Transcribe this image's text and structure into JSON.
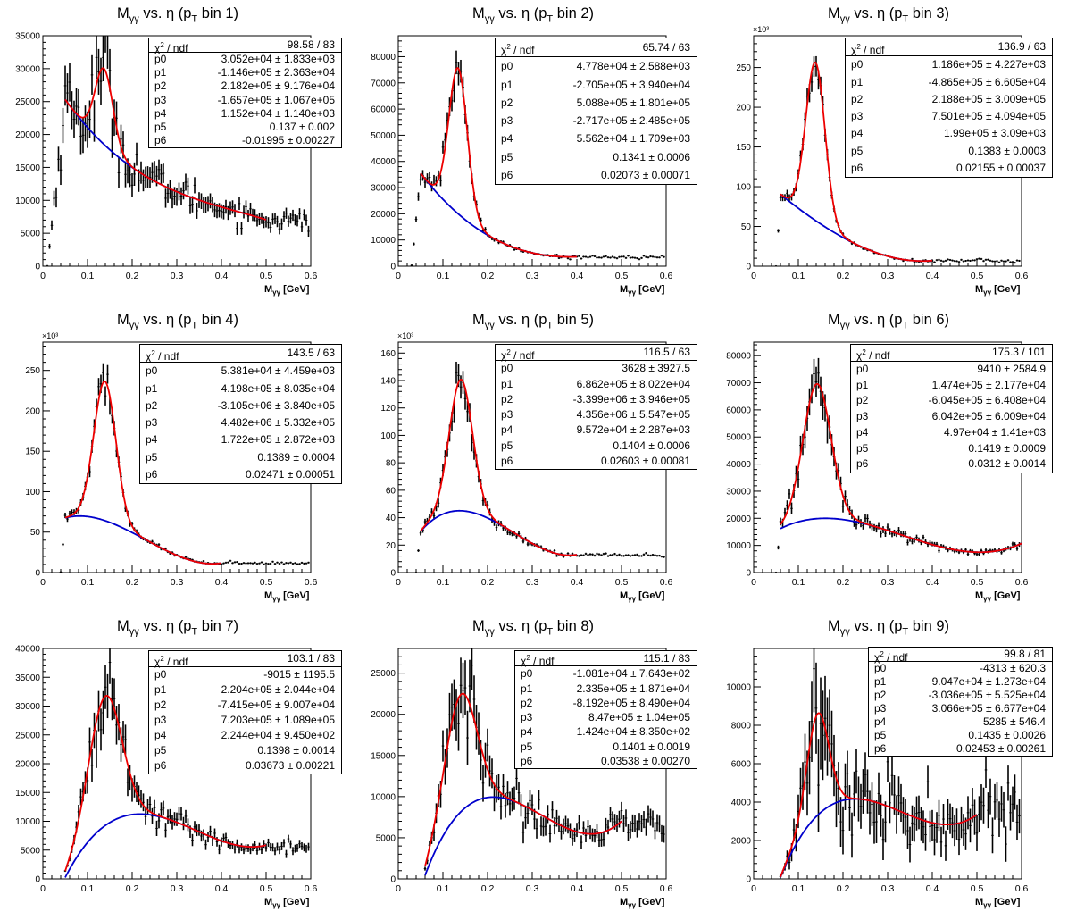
{
  "chart_data": [
    {
      "type": "scatter",
      "title_main": "M",
      "title_sub": "γγ",
      "title_rest": " vs. η (p",
      "title_sub2": "T",
      "title_end": " bin 1)",
      "xlabel_main": "M",
      "xlabel_sub": "γγ",
      "xlabel_rest": " [GeV]",
      "xlim": [
        0,
        0.6
      ],
      "ylim": [
        0,
        35000
      ],
      "yticks": [
        0,
        5000,
        10000,
        15000,
        20000,
        25000,
        30000,
        35000
      ],
      "ytick_labels": [
        "0",
        "5000",
        "10000",
        "15000",
        "20000",
        "25000",
        "30000",
        "35000"
      ],
      "y_exponent": "",
      "fit_range": [
        0.05,
        0.5
      ],
      "params": [
        30520,
        -114600,
        218200,
        -165700,
        11520,
        0.137,
        -0.01995
      ],
      "stats": {
        "chi2_label": "χ",
        "chi2_sup": "2",
        "ndf_label": " / ndf",
        "chi2_value": "98.58 / 83",
        "rows": [
          [
            "p0",
            "3.052e+04 ± 1.833e+03"
          ],
          [
            "p1",
            "-1.146e+05 ± 2.363e+04"
          ],
          [
            "p2",
            "2.182e+05 ± 9.176e+04"
          ],
          [
            "p3",
            "-1.657e+05 ± 1.067e+05"
          ],
          [
            "p4",
            "1.152e+04 ± 1.140e+03"
          ],
          [
            "p5",
            "0.137 ± 0.002"
          ],
          [
            "p6",
            "-0.01995 ± 0.00227"
          ]
        ]
      },
      "data_onset": 0.01,
      "noise": 0.12
    },
    {
      "type": "scatter",
      "title_main": "M",
      "title_sub": "γγ",
      "title_rest": " vs. η (p",
      "title_sub2": "T",
      "title_end": " bin 2)",
      "xlabel_main": "M",
      "xlabel_sub": "γγ",
      "xlabel_rest": " [GeV]",
      "xlim": [
        0,
        0.6
      ],
      "ylim": [
        0,
        88000
      ],
      "yticks": [
        0,
        10000,
        20000,
        30000,
        40000,
        50000,
        60000,
        70000,
        80000
      ],
      "ytick_labels": [
        "0",
        "10000",
        "20000",
        "30000",
        "40000",
        "50000",
        "60000",
        "70000",
        "80000"
      ],
      "y_exponent": "",
      "fit_range": [
        0.05,
        0.4
      ],
      "params": [
        47780,
        -270500,
        508800,
        -271700,
        55620,
        0.1341,
        0.02073
      ],
      "stats": {
        "chi2_label": "χ",
        "chi2_sup": "2",
        "ndf_label": " / ndf",
        "chi2_value": "65.74 / 63",
        "rows": [
          [
            "p0",
            "4.778e+04 ± 2.588e+03"
          ],
          [
            "p1",
            "-2.705e+05 ± 3.940e+04"
          ],
          [
            "p2",
            "5.088e+05 ± 1.801e+05"
          ],
          [
            "p3",
            "-2.717e+05 ± 2.485e+05"
          ],
          [
            "p4",
            "5.562e+04 ± 1.709e+03"
          ],
          [
            "p5",
            "0.1341 ± 0.0006"
          ],
          [
            "p6",
            "0.02073 ± 0.00071"
          ]
        ]
      },
      "data_onset": 0.03,
      "noise": 0.06
    },
    {
      "type": "scatter",
      "title_main": "M",
      "title_sub": "γγ",
      "title_rest": " vs. η (p",
      "title_sub2": "T",
      "title_end": " bin 3)",
      "xlabel_main": "M",
      "xlabel_sub": "γγ",
      "xlabel_rest": " [GeV]",
      "xlim": [
        0,
        0.6
      ],
      "ylim": [
        0,
        290
      ],
      "yticks": [
        0,
        50,
        100,
        150,
        200,
        250
      ],
      "ytick_labels": [
        "0",
        "50",
        "100",
        "150",
        "200",
        "250"
      ],
      "y_exponent": "×10³",
      "fit_range": [
        0.06,
        0.4
      ],
      "params": [
        118.6,
        -486.5,
        218.8,
        750.1,
        199,
        0.1383,
        0.02155
      ],
      "stats": {
        "chi2_label": "χ",
        "chi2_sup": "2",
        "ndf_label": " / ndf",
        "chi2_value": "136.9 / 63",
        "rows": [
          [
            "p0",
            "1.186e+05 ± 4.227e+03"
          ],
          [
            "p1",
            "-4.865e+05 ± 6.605e+04"
          ],
          [
            "p2",
            "2.188e+05 ± 3.009e+05"
          ],
          [
            "p3",
            "7.501e+05 ± 4.094e+05"
          ],
          [
            "p4",
            "1.99e+05 ± 3.09e+03"
          ],
          [
            "p5",
            "0.1383 ± 0.0003"
          ],
          [
            "p6",
            "0.02155 ± 0.00037"
          ]
        ]
      },
      "data_onset": 0.05,
      "noise": 0.05
    },
    {
      "type": "scatter",
      "title_main": "M",
      "title_sub": "γγ",
      "title_rest": " vs. η (p",
      "title_sub2": "T",
      "title_end": " bin 4)",
      "xlabel_main": "M",
      "xlabel_sub": "γγ",
      "xlabel_rest": " [GeV]",
      "xlim": [
        0,
        0.6
      ],
      "ylim": [
        0,
        285
      ],
      "yticks": [
        0,
        50,
        100,
        150,
        200,
        250
      ],
      "ytick_labels": [
        "0",
        "50",
        "100",
        "150",
        "200",
        "250"
      ],
      "y_exponent": "×10³",
      "fit_range": [
        0.05,
        0.4
      ],
      "params": [
        53.81,
        419.8,
        -3105,
        4482,
        172.2,
        0.1389,
        0.02471
      ],
      "stats": {
        "chi2_label": "χ",
        "chi2_sup": "2",
        "ndf_label": " / ndf",
        "chi2_value": "143.5 / 63",
        "rows": [
          [
            "p0",
            "5.381e+04 ± 4.459e+03"
          ],
          [
            "p1",
            "4.198e+05 ± 8.035e+04"
          ],
          [
            "p2",
            "-3.105e+06 ± 3.840e+05"
          ],
          [
            "p3",
            "4.482e+06 ± 5.332e+05"
          ],
          [
            "p4",
            "1.722e+05 ± 2.872e+03"
          ],
          [
            "p5",
            "0.1389 ± 0.0004"
          ],
          [
            "p6",
            "0.02471 ± 0.00051"
          ]
        ]
      },
      "data_onset": 0.04,
      "noise": 0.05
    },
    {
      "type": "scatter",
      "title_main": "M",
      "title_sub": "γγ",
      "title_rest": " vs. η (p",
      "title_sub2": "T",
      "title_end": " bin 5)",
      "xlabel_main": "M",
      "xlabel_sub": "γγ",
      "xlabel_rest": " [GeV]",
      "xlim": [
        0,
        0.6
      ],
      "ylim": [
        0,
        168
      ],
      "yticks": [
        0,
        20,
        40,
        60,
        80,
        100,
        120,
        140,
        160
      ],
      "ytick_labels": [
        "0",
        "20",
        "40",
        "60",
        "80",
        "100",
        "120",
        "140",
        "160"
      ],
      "y_exponent": "×10³",
      "fit_range": [
        0.05,
        0.4
      ],
      "params": [
        3.628,
        686.2,
        -3399,
        4356,
        95.72,
        0.1404,
        0.02603
      ],
      "stats": {
        "chi2_label": "χ",
        "chi2_sup": "2",
        "ndf_label": " / ndf",
        "chi2_value": "116.5 / 63",
        "rows": [
          [
            "p0",
            "3628 ± 3927.5"
          ],
          [
            "p1",
            "6.862e+05 ± 8.022e+04"
          ],
          [
            "p2",
            "-3.399e+06 ± 3.946e+05"
          ],
          [
            "p3",
            "4.356e+06 ± 5.547e+05"
          ],
          [
            "p4",
            "9.572e+04 ± 2.287e+03"
          ],
          [
            "p5",
            "0.1404 ± 0.0006"
          ],
          [
            "p6",
            "0.02603 ± 0.00081"
          ]
        ]
      },
      "data_onset": 0.04,
      "noise": 0.06
    },
    {
      "type": "scatter",
      "title_main": "M",
      "title_sub": "γγ",
      "title_rest": " vs. η (p",
      "title_sub2": "T",
      "title_end": " bin 6)",
      "xlabel_main": "M",
      "xlabel_sub": "γγ",
      "xlabel_rest": " [GeV]",
      "xlim": [
        0,
        0.6
      ],
      "ylim": [
        0,
        85000
      ],
      "yticks": [
        0,
        10000,
        20000,
        30000,
        40000,
        50000,
        60000,
        70000,
        80000
      ],
      "ytick_labels": [
        "0",
        "10000",
        "20000",
        "30000",
        "40000",
        "50000",
        "60000",
        "70000",
        "80000"
      ],
      "y_exponent": "",
      "fit_range": [
        0.06,
        0.6
      ],
      "params": [
        9410,
        147400,
        -604500,
        604200,
        49700,
        0.1419,
        0.0312
      ],
      "stats": {
        "chi2_label": "χ",
        "chi2_sup": "2",
        "ndf_label": " / ndf",
        "chi2_value": "175.3 / 101",
        "rows": [
          [
            "p0",
            "9410 ± 2584.9"
          ],
          [
            "p1",
            "1.474e+05 ± 2.177e+04"
          ],
          [
            "p2",
            "-6.045e+05 ± 6.408e+04"
          ],
          [
            "p3",
            "6.042e+05 ± 6.009e+04"
          ],
          [
            "p4",
            "4.97e+04 ± 1.41e+03"
          ],
          [
            "p5",
            "0.1419 ± 0.0009"
          ],
          [
            "p6",
            "0.0312 ± 0.0014"
          ]
        ]
      },
      "data_onset": 0.05,
      "noise": 0.08
    },
    {
      "type": "scatter",
      "title_main": "M",
      "title_sub": "γγ",
      "title_rest": " vs. η (p",
      "title_sub2": "T",
      "title_end": " bin 7)",
      "xlabel_main": "M",
      "xlabel_sub": "γγ",
      "xlabel_rest": " [GeV]",
      "xlim": [
        0,
        0.6
      ],
      "ylim": [
        0,
        40000
      ],
      "yticks": [
        0,
        5000,
        10000,
        15000,
        20000,
        25000,
        30000,
        35000,
        40000
      ],
      "ytick_labels": [
        "0",
        "5000",
        "10000",
        "15000",
        "20000",
        "25000",
        "30000",
        "35000",
        "40000"
      ],
      "y_exponent": "",
      "fit_range": [
        0.05,
        0.5
      ],
      "params": [
        -9015,
        220400,
        -741500,
        720300,
        22440,
        0.1398,
        0.03673
      ],
      "stats": {
        "chi2_label": "χ",
        "chi2_sup": "2",
        "ndf_label": " / ndf",
        "chi2_value": "103.1 / 83",
        "rows": [
          [
            "p0",
            "-9015 ± 1195.5"
          ],
          [
            "p1",
            "2.204e+05 ± 2.044e+04"
          ],
          [
            "p2",
            "-7.415e+05 ± 9.007e+04"
          ],
          [
            "p3",
            "7.203e+05 ± 1.089e+05"
          ],
          [
            "p4",
            "2.244e+04 ± 9.450e+02"
          ],
          [
            "p5",
            "0.1398 ± 0.0014"
          ],
          [
            "p6",
            "0.03673 ± 0.00221"
          ]
        ]
      },
      "data_onset": 0.05,
      "noise": 0.12
    },
    {
      "type": "scatter",
      "title_main": "M",
      "title_sub": "γγ",
      "title_rest": " vs. η (p",
      "title_sub2": "T",
      "title_end": " bin 8)",
      "xlabel_main": "M",
      "xlabel_sub": "γγ",
      "xlabel_rest": " [GeV]",
      "xlim": [
        0,
        0.6
      ],
      "ylim": [
        0,
        28000
      ],
      "yticks": [
        0,
        5000,
        10000,
        15000,
        20000,
        25000
      ],
      "ytick_labels": [
        "0",
        "5000",
        "10000",
        "15000",
        "20000",
        "25000"
      ],
      "y_exponent": "",
      "fit_range": [
        0.06,
        0.5
      ],
      "params": [
        -10810,
        233500,
        -819200,
        847000,
        14240,
        0.1401,
        0.03538
      ],
      "stats": {
        "chi2_label": "χ",
        "chi2_sup": "2",
        "ndf_label": " / ndf",
        "chi2_value": "115.1 / 83",
        "rows": [
          [
            "p0",
            "-1.081e+04 ± 7.643e+02"
          ],
          [
            "p1",
            "2.335e+05 ± 1.871e+04"
          ],
          [
            "p2",
            "-8.192e+05 ± 8.490e+04"
          ],
          [
            "p3",
            "8.47e+05 ± 1.04e+05"
          ],
          [
            "p4",
            "1.424e+04 ± 8.350e+02"
          ],
          [
            "p5",
            "0.1401 ± 0.0019"
          ],
          [
            "p6",
            "0.03538 ± 0.00270"
          ]
        ]
      },
      "data_onset": 0.06,
      "noise": 0.15
    },
    {
      "type": "scatter",
      "title_main": "M",
      "title_sub": "γγ",
      "title_rest": " vs. η (p",
      "title_sub2": "T",
      "title_end": " bin 9)",
      "xlabel_main": "M",
      "xlabel_sub": "γγ",
      "xlabel_rest": " [GeV]",
      "xlim": [
        0,
        0.6
      ],
      "ylim": [
        0,
        12000
      ],
      "yticks": [
        0,
        2000,
        4000,
        6000,
        8000,
        10000
      ],
      "ytick_labels": [
        "0",
        "2000",
        "4000",
        "6000",
        "8000",
        "10000"
      ],
      "y_exponent": "",
      "fit_range": [
        0.06,
        0.5
      ],
      "params": [
        -4313,
        90470,
        -303600,
        306600,
        5285,
        0.1435,
        0.02453
      ],
      "stats": {
        "chi2_label": "χ",
        "chi2_sup": "2",
        "ndf_label": " / ndf",
        "chi2_value": "99.8 / 81",
        "rows": [
          [
            "p0",
            "-4313 ± 620.3"
          ],
          [
            "p1",
            "9.047e+04 ± 1.273e+04"
          ],
          [
            "p2",
            "-3.036e+05 ± 5.525e+04"
          ],
          [
            "p3",
            "3.066e+05 ± 6.677e+04"
          ],
          [
            "p4",
            "5285 ± 546.4"
          ],
          [
            "p5",
            "0.1435 ± 0.0026"
          ],
          [
            "p6",
            "0.02453 ± 0.00261"
          ]
        ]
      },
      "data_onset": 0.06,
      "noise": 0.28
    }
  ],
  "colors": {
    "data": "#000000",
    "total_fit": "#ee0000",
    "background_fit": "#0000cc"
  },
  "xticks": [
    0,
    0.1,
    0.2,
    0.3,
    0.4,
    0.5,
    0.6
  ],
  "xtick_labels": [
    "0",
    "0.1",
    "0.2",
    "0.3",
    "0.4",
    "0.5",
    "0.6"
  ]
}
